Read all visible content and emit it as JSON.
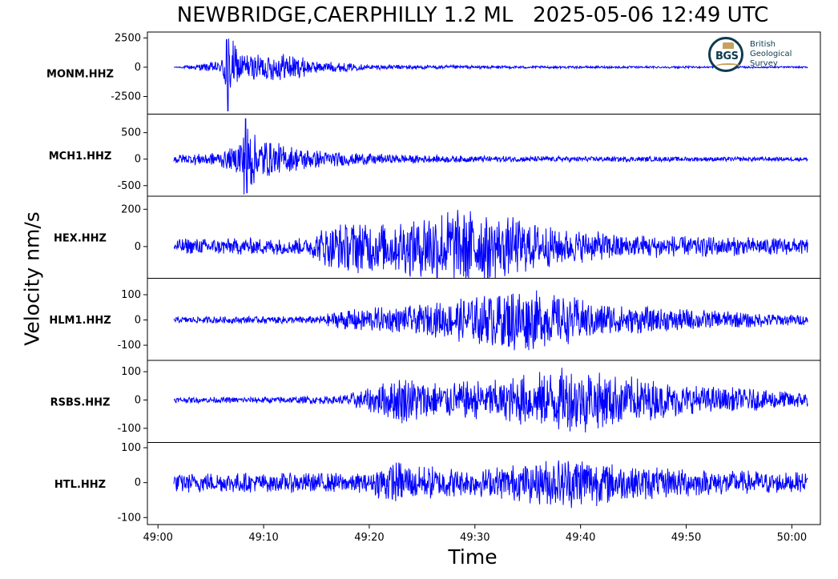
{
  "header": {
    "title": "NEWBRIDGE,CAERPHILLY 1.2 ML   2025-05-06 12:49 UTC"
  },
  "logo": {
    "mark": "BGS",
    "line1": "British",
    "line2": "Geological",
    "line3": "Survey"
  },
  "chart_data": {
    "type": "line",
    "xlabel": "Time",
    "ylabel": "Velocity nm/s",
    "x_ticks": [
      "49:00",
      "49:10",
      "49:20",
      "49:30",
      "49:40",
      "49:50",
      "50:00"
    ],
    "x_tick_seconds": [
      0,
      10,
      20,
      30,
      40,
      50,
      60
    ],
    "x_range_seconds": [
      -1.0,
      62.7
    ],
    "trace_start_seconds": 1.5,
    "trace_end_seconds": 61.5,
    "line_color": "#0000ff",
    "grid": false,
    "panels": [
      {
        "name": "MONM.HHZ",
        "ylim": [
          -4000,
          3000
        ],
        "yticks": [
          2500,
          0,
          -2500
        ],
        "onset": 6.5,
        "peak": 2400,
        "trough": -3800,
        "noise": 70,
        "envelope": [
          [
            1.5,
            0.0
          ],
          [
            6.0,
            0.15
          ],
          [
            6.6,
            1.0
          ],
          [
            7.2,
            0.55
          ],
          [
            8.5,
            0.3
          ],
          [
            12,
            0.35
          ],
          [
            15,
            0.15
          ],
          [
            20,
            0.06
          ],
          [
            35,
            0.03
          ],
          [
            61.5,
            0.02
          ]
        ]
      },
      {
        "name": "MCH1.HHZ",
        "ylim": [
          -700,
          850
        ],
        "yticks": [
          500,
          0,
          -500
        ],
        "onset": 8.3,
        "peak": 780,
        "trough": -650,
        "noise": 60,
        "envelope": [
          [
            1.5,
            0.12
          ],
          [
            5.5,
            0.18
          ],
          [
            7.3,
            0.3
          ],
          [
            8.3,
            1.0
          ],
          [
            9.5,
            0.55
          ],
          [
            12,
            0.35
          ],
          [
            16,
            0.2
          ],
          [
            22,
            0.12
          ],
          [
            30,
            0.08
          ],
          [
            61.5,
            0.05
          ]
        ]
      },
      {
        "name": "HEX.HHZ",
        "ylim": [
          -170,
          270
        ],
        "yticks": [
          200,
          0
        ],
        "noise": 20,
        "envelope": [
          [
            1.5,
            0.2
          ],
          [
            14,
            0.22
          ],
          [
            16,
            0.55
          ],
          [
            19,
            0.7
          ],
          [
            22,
            0.6
          ],
          [
            26,
            0.95
          ],
          [
            30,
            1.0
          ],
          [
            34,
            0.7
          ],
          [
            38,
            0.45
          ],
          [
            45,
            0.3
          ],
          [
            61.5,
            0.2
          ]
        ]
      },
      {
        "name": "HLM1.HHZ",
        "ylim": [
          -160,
          165
        ],
        "yticks": [
          100,
          0,
          -100
        ],
        "noise": 12,
        "envelope": [
          [
            1.5,
            0.1
          ],
          [
            15,
            0.12
          ],
          [
            18,
            0.35
          ],
          [
            23,
            0.4
          ],
          [
            27,
            0.55
          ],
          [
            31,
            0.8
          ],
          [
            34,
            1.0
          ],
          [
            38,
            0.75
          ],
          [
            44,
            0.45
          ],
          [
            52,
            0.3
          ],
          [
            61.5,
            0.15
          ]
        ]
      },
      {
        "name": "RSBS.HHZ",
        "ylim": [
          -150,
          140
        ],
        "yticks": [
          100,
          0,
          -100
        ],
        "noise": 8,
        "envelope": [
          [
            1.5,
            0.08
          ],
          [
            17,
            0.12
          ],
          [
            20,
            0.35
          ],
          [
            23,
            0.75
          ],
          [
            27,
            0.55
          ],
          [
            32,
            0.6
          ],
          [
            37,
            0.9
          ],
          [
            40,
            1.0
          ],
          [
            43,
            0.8
          ],
          [
            50,
            0.45
          ],
          [
            61.5,
            0.25
          ]
        ]
      },
      {
        "name": "HTL.HHZ",
        "ylim": [
          -120,
          115
        ],
        "yticks": [
          100,
          0,
          -100
        ],
        "noise": 22,
        "envelope": [
          [
            1.5,
            0.3
          ],
          [
            20,
            0.3
          ],
          [
            22,
            0.7
          ],
          [
            24,
            0.55
          ],
          [
            30,
            0.4
          ],
          [
            36,
            0.65
          ],
          [
            40,
            0.85
          ],
          [
            44,
            0.55
          ],
          [
            52,
            0.4
          ],
          [
            61.5,
            0.3
          ]
        ]
      }
    ]
  }
}
